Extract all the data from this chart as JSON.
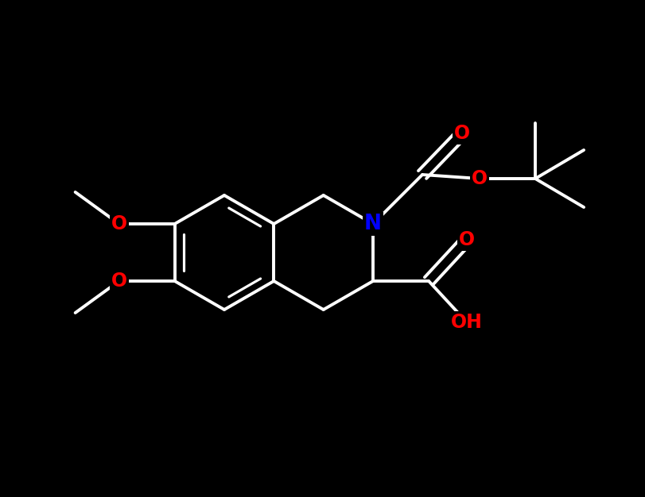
{
  "background_color": "#000000",
  "bond_color": "#000000",
  "bond_width": 2.8,
  "atom_colors": {
    "N": "#0000FF",
    "O": "#FF0000",
    "C": "#000000"
  },
  "font_size_atom": 17,
  "figsize": [
    8.12,
    6.26
  ],
  "dpi": 100
}
